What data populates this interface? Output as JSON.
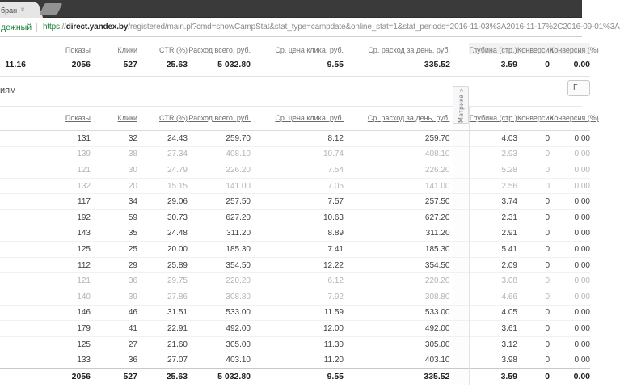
{
  "browser": {
    "tab": {
      "title_fragment": "бран",
      "close_glyph": "×"
    },
    "address": {
      "secure_fragment": "дежный",
      "separator": "|",
      "url_scheme": "https",
      "url_scheme_sep": "://",
      "url_domain": "direct.yandex.by",
      "url_path": "/registered/main.pl?cmd=showCampStat&stat_type=campdate&online_stat=1&stat_periods=2016-11-03%3A2016-11-17%2C2016-09-01%3A"
    }
  },
  "table_columns": [
    "Показы",
    "Клики",
    "CTR (%)",
    "Расход всего, руб.",
    "Ср. цена клика, руб.",
    "Ср. расход за день, руб.",
    "Глубина (стр.)",
    "Конверсии",
    "Конверсия (%)"
  ],
  "summary": {
    "period_fragment": "11.16",
    "values": [
      "2056",
      "527",
      "25.63",
      "5 032.80",
      "9.55",
      "335.52",
      "3.59",
      "0",
      "0.00"
    ],
    "metrika_label": "Метрика »"
  },
  "section": {
    "heading_fragment": "иям",
    "partial_button_fragment": "Г"
  },
  "detail_table": {
    "rows": [
      {
        "muted": false,
        "cells": [
          "131",
          "32",
          "24.43",
          "259.70",
          "8.12",
          "259.70",
          "4.03",
          "0",
          "0.00"
        ]
      },
      {
        "muted": true,
        "cells": [
          "139",
          "38",
          "27.34",
          "408.10",
          "10.74",
          "408.10",
          "2.93",
          "0",
          "0.00"
        ]
      },
      {
        "muted": true,
        "cells": [
          "121",
          "30",
          "24.79",
          "226.20",
          "7.54",
          "226.20",
          "5.28",
          "0",
          "0.00"
        ]
      },
      {
        "muted": true,
        "cells": [
          "132",
          "20",
          "15.15",
          "141.00",
          "7.05",
          "141.00",
          "2.56",
          "0",
          "0.00"
        ]
      },
      {
        "muted": false,
        "cells": [
          "117",
          "34",
          "29.06",
          "257.50",
          "7.57",
          "257.50",
          "3.74",
          "0",
          "0.00"
        ]
      },
      {
        "muted": false,
        "cells": [
          "192",
          "59",
          "30.73",
          "627.20",
          "10.63",
          "627.20",
          "2.31",
          "0",
          "0.00"
        ]
      },
      {
        "muted": false,
        "cells": [
          "143",
          "35",
          "24.48",
          "311.20",
          "8.89",
          "311.20",
          "2.91",
          "0",
          "0.00"
        ]
      },
      {
        "muted": false,
        "cells": [
          "125",
          "25",
          "20.00",
          "185.30",
          "7.41",
          "185.30",
          "5.41",
          "0",
          "0.00"
        ]
      },
      {
        "muted": false,
        "cells": [
          "112",
          "29",
          "25.89",
          "354.50",
          "12.22",
          "354.50",
          "2.09",
          "0",
          "0.00"
        ]
      },
      {
        "muted": true,
        "cells": [
          "121",
          "36",
          "29.75",
          "220.20",
          "6.12",
          "220.20",
          "3.08",
          "0",
          "0.00"
        ]
      },
      {
        "muted": true,
        "cells": [
          "140",
          "39",
          "27.86",
          "308.80",
          "7.92",
          "308.80",
          "4.66",
          "0",
          "0.00"
        ]
      },
      {
        "muted": false,
        "cells": [
          "146",
          "46",
          "31.51",
          "533.00",
          "11.59",
          "533.00",
          "4.05",
          "0",
          "0.00"
        ]
      },
      {
        "muted": false,
        "cells": [
          "179",
          "41",
          "22.91",
          "492.00",
          "12.00",
          "492.00",
          "3.61",
          "0",
          "0.00"
        ]
      },
      {
        "muted": false,
        "cells": [
          "125",
          "27",
          "21.60",
          "305.00",
          "11.30",
          "305.00",
          "3.12",
          "0",
          "0.00"
        ]
      },
      {
        "muted": false,
        "cells": [
          "133",
          "36",
          "27.07",
          "403.10",
          "11.20",
          "403.10",
          "3.98",
          "0",
          "0.00"
        ]
      }
    ],
    "totals": [
      "2056",
      "527",
      "25.63",
      "5 032.80",
      "9.55",
      "335.52",
      "3.59",
      "0",
      "0.00"
    ]
  },
  "colors": {
    "secure_green": "#188038",
    "tabbar_bg": "#3a3a3a",
    "row_text": "#3e3e3e",
    "muted_row_text": "#b4b4b4",
    "header_link": "#6b6b6b"
  }
}
